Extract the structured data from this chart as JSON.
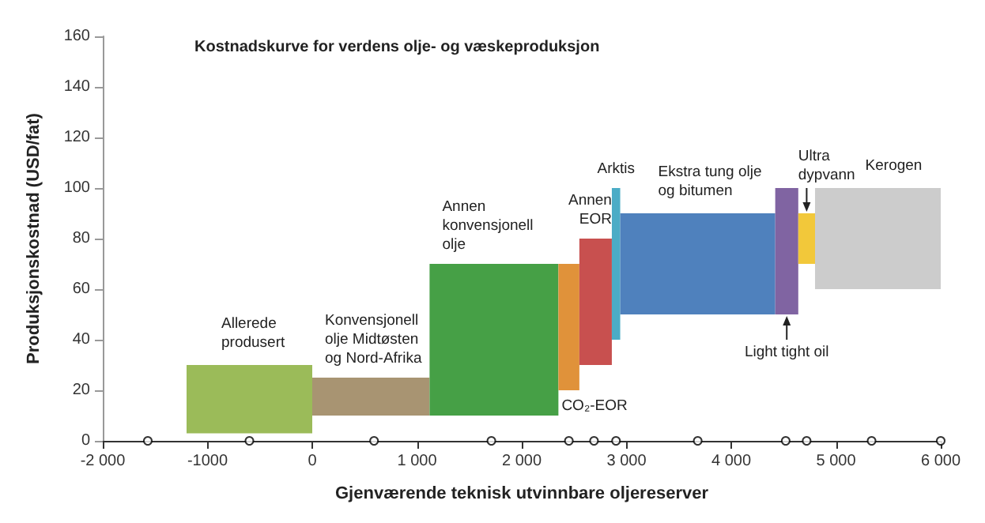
{
  "chart_data": {
    "type": "histogram",
    "title": "Kostnadskurve for verdens olje- og væskeproduksjon",
    "xlabel": "Gjenværende teknisk utvinnbare oljereserver",
    "ylabel": "Produksjonskostnad (USD/fat)",
    "bins": [
      -1200,
      0,
      1120,
      2350,
      2550,
      2860,
      2940,
      4420,
      4640,
      4800,
      6000
    ],
    "base": [
      3,
      10,
      10,
      20,
      30,
      40,
      50,
      50,
      70,
      60
    ],
    "values": [
      27,
      15,
      60,
      50,
      50,
      60,
      40,
      50,
      20,
      40
    ],
    "colors": [
      "#9bbb59",
      "#a89472",
      "#46a046",
      "#e0923a",
      "#c8504f",
      "#4bacc6",
      "#4f81bd",
      "#8064a2",
      "#f2c83a",
      "#cccccc"
    ],
    "series": [
      {
        "type": "scatter",
        "color": "#000000",
        "x": [
          -1570,
          -600,
          590,
          1710,
          2450,
          2690,
          2900,
          3680,
          4520,
          4720,
          5340,
          6000
        ],
        "values": [
          0,
          0,
          0,
          0,
          0,
          0,
          0,
          0,
          0,
          0,
          0,
          0
        ]
      }
    ],
    "marker": "circle",
    "annotations": [
      "Allerede\nprodusert",
      "Konvensjonell\nolje Midtøsten\nog Nord-Afrika",
      "Annen\nkonvensjonell\nolje",
      "CO₂-EOR",
      "Annen\nEOR",
      "Arktis",
      "Ekstra tung olje\nog bitumen",
      {
        "text": "Light tight oil",
        "x": 4530,
        "y": 50
      },
      {
        "text": "Ultra\ndypvann",
        "x": 4720,
        "y": 90
      },
      "Kerogen"
    ],
    "xlim": [
      -2000,
      6000
    ],
    "xticks": [
      {
        "value": -2000,
        "label": "-2 000"
      },
      {
        "value": -1000,
        "label": "-1000"
      },
      0,
      {
        "value": 1000,
        "label": "1 000"
      },
      {
        "value": 2000,
        "label": "2 000"
      },
      {
        "value": 3000,
        "label": "3 000"
      },
      {
        "value": 4000,
        "label": "4 000"
      },
      {
        "value": 5000,
        "label": "5 000"
      },
      {
        "value": 6000,
        "label": "6 000"
      }
    ],
    "ylim": [
      0,
      160
    ],
    "yticks": [
      0,
      20,
      40,
      60,
      80,
      100,
      120,
      140,
      160
    ],
    "grid": false
  }
}
